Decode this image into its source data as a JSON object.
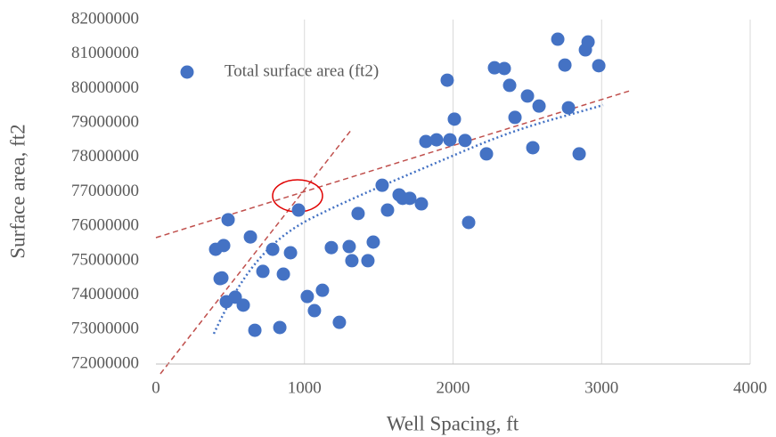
{
  "chart_data": {
    "type": "scatter",
    "xlabel": "Well Spacing, ft",
    "ylabel": "Surface area, ft2",
    "xlim": [
      0,
      4000
    ],
    "xticks": [
      0,
      1000,
      2000,
      3000,
      4000
    ],
    "ylim": [
      72000000,
      82000000
    ],
    "yticks": [
      72000000,
      73000000,
      74000000,
      75000000,
      76000000,
      77000000,
      78000000,
      79000000,
      80000000,
      81000000,
      82000000
    ],
    "grid": true,
    "legend": "upper-left",
    "series": [
      {
        "name": "Total surface area (ft2)",
        "color": "#4472c4",
        "x": [
          402,
          456,
          432,
          444,
          486,
          474,
          534,
          588,
          636,
          666,
          720,
          786,
          858,
          834,
          906,
          960,
          1019,
          1067,
          1121,
          1181,
          1235,
          1301,
          1319,
          1361,
          1427,
          1463,
          1523,
          1559,
          1637,
          1661,
          1709,
          1787,
          1817,
          1889,
          1961,
          1979,
          2009,
          2081,
          2105,
          2225,
          2279,
          2345,
          2381,
          2417,
          2501,
          2537,
          2579,
          2705,
          2753,
          2777,
          2849,
          2891,
          2909,
          2981
        ],
        "values": [
          75330000,
          75440000,
          74480000,
          74500000,
          76190000,
          73810000,
          73940000,
          73710000,
          75690000,
          72980000,
          74690000,
          75330000,
          74610000,
          73060000,
          75230000,
          76470000,
          73960000,
          73550000,
          74140000,
          75380000,
          73210000,
          75410000,
          75000000,
          76370000,
          75000000,
          75540000,
          77190000,
          76470000,
          76910000,
          76810000,
          76810000,
          76650000,
          78460000,
          78510000,
          80240000,
          78510000,
          79110000,
          78490000,
          76110000,
          78100000,
          80600000,
          80580000,
          80090000,
          79160000,
          79780000,
          78280000,
          79490000,
          81430000,
          80680000,
          79440000,
          78100000,
          81120000,
          81350000,
          80660000
        ]
      }
    ]
  }
}
